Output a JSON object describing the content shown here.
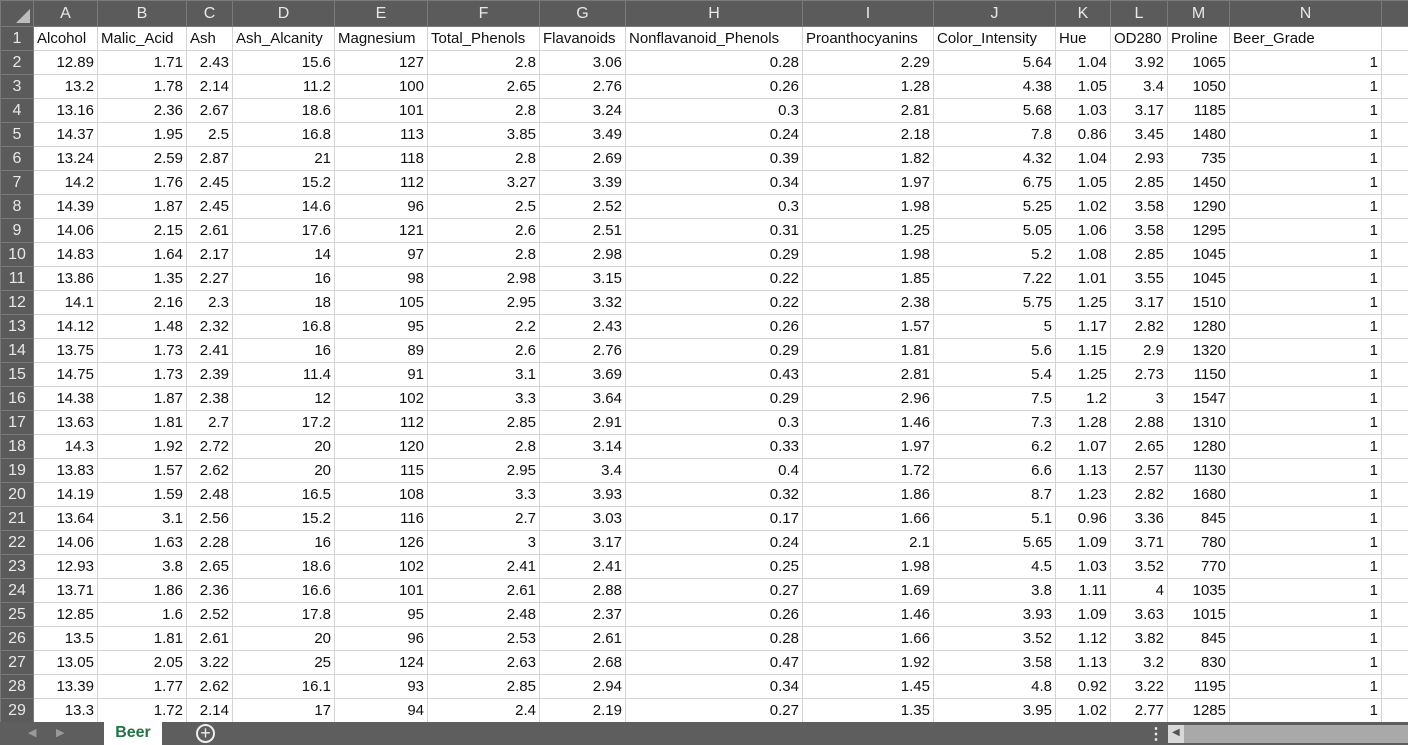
{
  "columns": [
    "A",
    "B",
    "C",
    "D",
    "E",
    "F",
    "G",
    "H",
    "I",
    "J",
    "K",
    "L",
    "M",
    "N"
  ],
  "headers": [
    "Alcohol",
    "Malic_Acid",
    "Ash",
    "Ash_Alcanity",
    "Magnesium",
    "Total_Phenols",
    "Flavanoids",
    "Nonflavanoid_Phenols",
    "Proanthocyanins",
    "Color_Intensity",
    "Hue",
    "OD280",
    "Proline",
    "Beer_Grade"
  ],
  "rows": [
    [
      "12.89",
      "1.71",
      "2.43",
      "15.6",
      "127",
      "2.8",
      "3.06",
      "0.28",
      "2.29",
      "5.64",
      "1.04",
      "3.92",
      "1065",
      "1"
    ],
    [
      "13.2",
      "1.78",
      "2.14",
      "11.2",
      "100",
      "2.65",
      "2.76",
      "0.26",
      "1.28",
      "4.38",
      "1.05",
      "3.4",
      "1050",
      "1"
    ],
    [
      "13.16",
      "2.36",
      "2.67",
      "18.6",
      "101",
      "2.8",
      "3.24",
      "0.3",
      "2.81",
      "5.68",
      "1.03",
      "3.17",
      "1185",
      "1"
    ],
    [
      "14.37",
      "1.95",
      "2.5",
      "16.8",
      "113",
      "3.85",
      "3.49",
      "0.24",
      "2.18",
      "7.8",
      "0.86",
      "3.45",
      "1480",
      "1"
    ],
    [
      "13.24",
      "2.59",
      "2.87",
      "21",
      "118",
      "2.8",
      "2.69",
      "0.39",
      "1.82",
      "4.32",
      "1.04",
      "2.93",
      "735",
      "1"
    ],
    [
      "14.2",
      "1.76",
      "2.45",
      "15.2",
      "112",
      "3.27",
      "3.39",
      "0.34",
      "1.97",
      "6.75",
      "1.05",
      "2.85",
      "1450",
      "1"
    ],
    [
      "14.39",
      "1.87",
      "2.45",
      "14.6",
      "96",
      "2.5",
      "2.52",
      "0.3",
      "1.98",
      "5.25",
      "1.02",
      "3.58",
      "1290",
      "1"
    ],
    [
      "14.06",
      "2.15",
      "2.61",
      "17.6",
      "121",
      "2.6",
      "2.51",
      "0.31",
      "1.25",
      "5.05",
      "1.06",
      "3.58",
      "1295",
      "1"
    ],
    [
      "14.83",
      "1.64",
      "2.17",
      "14",
      "97",
      "2.8",
      "2.98",
      "0.29",
      "1.98",
      "5.2",
      "1.08",
      "2.85",
      "1045",
      "1"
    ],
    [
      "13.86",
      "1.35",
      "2.27",
      "16",
      "98",
      "2.98",
      "3.15",
      "0.22",
      "1.85",
      "7.22",
      "1.01",
      "3.55",
      "1045",
      "1"
    ],
    [
      "14.1",
      "2.16",
      "2.3",
      "18",
      "105",
      "2.95",
      "3.32",
      "0.22",
      "2.38",
      "5.75",
      "1.25",
      "3.17",
      "1510",
      "1"
    ],
    [
      "14.12",
      "1.48",
      "2.32",
      "16.8",
      "95",
      "2.2",
      "2.43",
      "0.26",
      "1.57",
      "5",
      "1.17",
      "2.82",
      "1280",
      "1"
    ],
    [
      "13.75",
      "1.73",
      "2.41",
      "16",
      "89",
      "2.6",
      "2.76",
      "0.29",
      "1.81",
      "5.6",
      "1.15",
      "2.9",
      "1320",
      "1"
    ],
    [
      "14.75",
      "1.73",
      "2.39",
      "11.4",
      "91",
      "3.1",
      "3.69",
      "0.43",
      "2.81",
      "5.4",
      "1.25",
      "2.73",
      "1150",
      "1"
    ],
    [
      "14.38",
      "1.87",
      "2.38",
      "12",
      "102",
      "3.3",
      "3.64",
      "0.29",
      "2.96",
      "7.5",
      "1.2",
      "3",
      "1547",
      "1"
    ],
    [
      "13.63",
      "1.81",
      "2.7",
      "17.2",
      "112",
      "2.85",
      "2.91",
      "0.3",
      "1.46",
      "7.3",
      "1.28",
      "2.88",
      "1310",
      "1"
    ],
    [
      "14.3",
      "1.92",
      "2.72",
      "20",
      "120",
      "2.8",
      "3.14",
      "0.33",
      "1.97",
      "6.2",
      "1.07",
      "2.65",
      "1280",
      "1"
    ],
    [
      "13.83",
      "1.57",
      "2.62",
      "20",
      "115",
      "2.95",
      "3.4",
      "0.4",
      "1.72",
      "6.6",
      "1.13",
      "2.57",
      "1130",
      "1"
    ],
    [
      "14.19",
      "1.59",
      "2.48",
      "16.5",
      "108",
      "3.3",
      "3.93",
      "0.32",
      "1.86",
      "8.7",
      "1.23",
      "2.82",
      "1680",
      "1"
    ],
    [
      "13.64",
      "3.1",
      "2.56",
      "15.2",
      "116",
      "2.7",
      "3.03",
      "0.17",
      "1.66",
      "5.1",
      "0.96",
      "3.36",
      "845",
      "1"
    ],
    [
      "14.06",
      "1.63",
      "2.28",
      "16",
      "126",
      "3",
      "3.17",
      "0.24",
      "2.1",
      "5.65",
      "1.09",
      "3.71",
      "780",
      "1"
    ],
    [
      "12.93",
      "3.8",
      "2.65",
      "18.6",
      "102",
      "2.41",
      "2.41",
      "0.25",
      "1.98",
      "4.5",
      "1.03",
      "3.52",
      "770",
      "1"
    ],
    [
      "13.71",
      "1.86",
      "2.36",
      "16.6",
      "101",
      "2.61",
      "2.88",
      "0.27",
      "1.69",
      "3.8",
      "1.11",
      "4",
      "1035",
      "1"
    ],
    [
      "12.85",
      "1.6",
      "2.52",
      "17.8",
      "95",
      "2.48",
      "2.37",
      "0.26",
      "1.46",
      "3.93",
      "1.09",
      "3.63",
      "1015",
      "1"
    ],
    [
      "13.5",
      "1.81",
      "2.61",
      "20",
      "96",
      "2.53",
      "2.61",
      "0.28",
      "1.66",
      "3.52",
      "1.12",
      "3.82",
      "845",
      "1"
    ],
    [
      "13.05",
      "2.05",
      "3.22",
      "25",
      "124",
      "2.63",
      "2.68",
      "0.47",
      "1.92",
      "3.58",
      "1.13",
      "3.2",
      "830",
      "1"
    ],
    [
      "13.39",
      "1.77",
      "2.62",
      "16.1",
      "93",
      "2.85",
      "2.94",
      "0.34",
      "1.45",
      "4.8",
      "0.92",
      "3.22",
      "1195",
      "1"
    ],
    [
      "13.3",
      "1.72",
      "2.14",
      "17",
      "94",
      "2.4",
      "2.19",
      "0.27",
      "1.35",
      "3.95",
      "1.02",
      "2.77",
      "1285",
      "1"
    ]
  ],
  "sheet_tab": "Beer",
  "add_sheet_icon": "plus-circle-icon",
  "colors": {
    "header_bg": "#5b5b5b",
    "tab_text": "#217346"
  }
}
